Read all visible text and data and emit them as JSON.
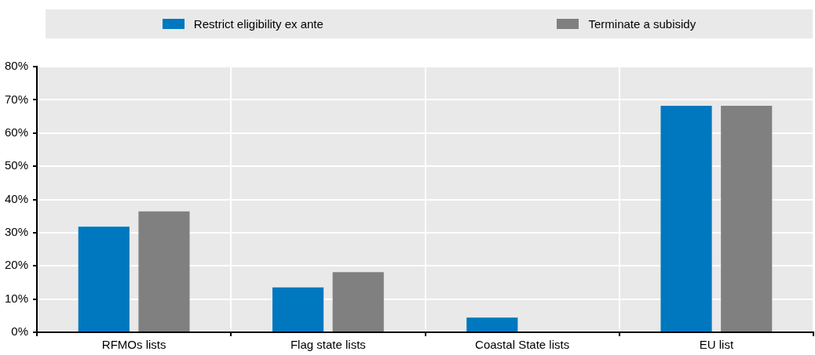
{
  "chart_data": {
    "type": "bar",
    "categories": [
      "RFMOs lists",
      "Flag state lists",
      "Coastal State lists",
      "EU list"
    ],
    "series": [
      {
        "name": "Restrict eligibility ex ante",
        "color": "#0078bf",
        "values": [
          31.8,
          13.5,
          4.4,
          68.2
        ]
      },
      {
        "name": "Terminate a subisidy",
        "color": "#808080",
        "values": [
          36.4,
          18.1,
          0,
          68.2
        ]
      }
    ],
    "ylim": [
      0,
      80
    ],
    "yticks": [
      {
        "value": 0,
        "label": "0%"
      },
      {
        "value": 10,
        "label": "10%"
      },
      {
        "value": 20,
        "label": "20%"
      },
      {
        "value": 30,
        "label": "30%"
      },
      {
        "value": 40,
        "label": "40%"
      },
      {
        "value": 50,
        "label": "50%"
      },
      {
        "value": 60,
        "label": "60%"
      },
      {
        "value": 70,
        "label": "70%"
      },
      {
        "value": 80,
        "label": "80%"
      }
    ],
    "grid": true,
    "legend": "top"
  }
}
